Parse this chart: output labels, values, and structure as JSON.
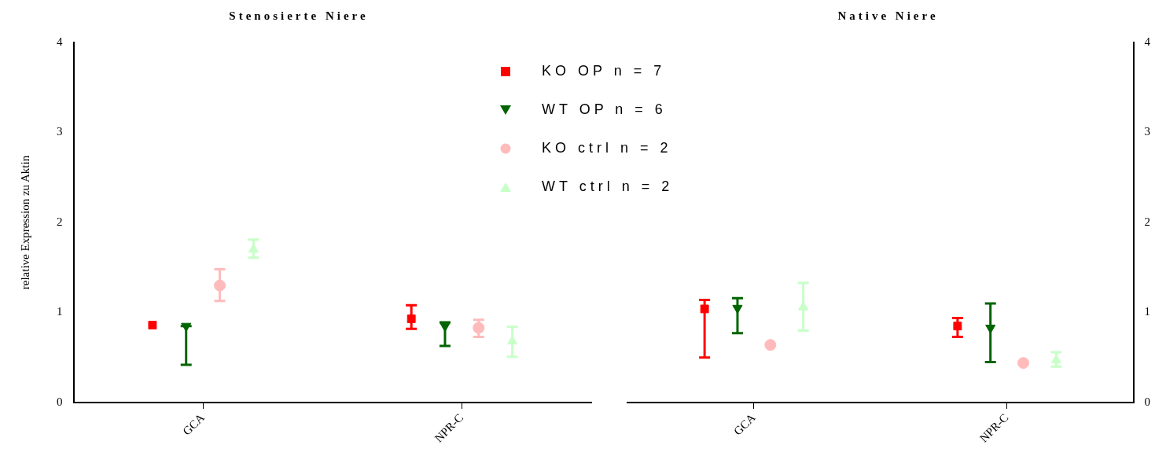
{
  "chart_data": [
    {
      "type": "scatter",
      "title": "Stenosierte Niere",
      "ylabel": "relative Expression zu Aktin",
      "categories": [
        "GCA",
        "NPR-C"
      ],
      "ylim": [
        0,
        4
      ],
      "yticks": [
        0,
        1,
        2,
        3,
        4
      ],
      "grid": false,
      "legend": "top right",
      "series": [
        {
          "name": "KO OP n = 7",
          "color": "#ff0000",
          "marker": "square",
          "values": [
            0.86,
            0.93
          ],
          "errors": [
            null,
            [
              0.82,
              1.08
            ]
          ]
        },
        {
          "name": "WT OP n = 6",
          "color": "#006400",
          "marker": "triangle-down",
          "values": [
            0.85,
            0.85
          ],
          "errors": [
            [
              0.42,
              0.85
            ],
            [
              0.63,
              0.89
            ]
          ]
        },
        {
          "name": "KO ctrl n = 2",
          "color": "#ffbbbb",
          "marker": "circle",
          "values": [
            1.3,
            0.83
          ],
          "errors": [
            [
              1.13,
              1.48
            ],
            [
              0.73,
              0.92
            ]
          ]
        },
        {
          "name": "WT ctrl n = 2",
          "color": "#c8ffc8",
          "marker": "triangle",
          "values": [
            1.7,
            0.68
          ],
          "errors": [
            [
              1.61,
              1.81
            ],
            [
              0.51,
              0.84
            ]
          ]
        }
      ]
    },
    {
      "type": "scatter",
      "title": "Native Niere",
      "categories": [
        "GCA",
        "NPR-C"
      ],
      "y2lim": [
        0,
        4
      ],
      "y2ticks": [
        0,
        1,
        2,
        3,
        4
      ],
      "grid": false,
      "legend": false,
      "series": [
        {
          "color": "#ff0000",
          "marker": "square",
          "axis": "y2",
          "values": [
            1.04,
            0.85
          ],
          "errors": [
            [
              0.5,
              1.14
            ],
            [
              0.73,
              0.94
            ]
          ]
        },
        {
          "color": "#006400",
          "marker": "triangle-down",
          "axis": "y2",
          "values": [
            1.05,
            0.83
          ],
          "errors": [
            [
              0.77,
              1.16
            ],
            [
              0.45,
              1.1
            ]
          ]
        },
        {
          "color": "#ffbbbb",
          "marker": "circle",
          "axis": "y2",
          "values": [
            0.64,
            0.44
          ],
          "errors": [
            null,
            null
          ]
        },
        {
          "color": "#c8ffc8",
          "marker": "triangle",
          "axis": "y2",
          "values": [
            1.06,
            0.47
          ],
          "errors": [
            [
              0.8,
              1.33
            ],
            [
              0.4,
              0.56
            ]
          ]
        }
      ]
    }
  ]
}
